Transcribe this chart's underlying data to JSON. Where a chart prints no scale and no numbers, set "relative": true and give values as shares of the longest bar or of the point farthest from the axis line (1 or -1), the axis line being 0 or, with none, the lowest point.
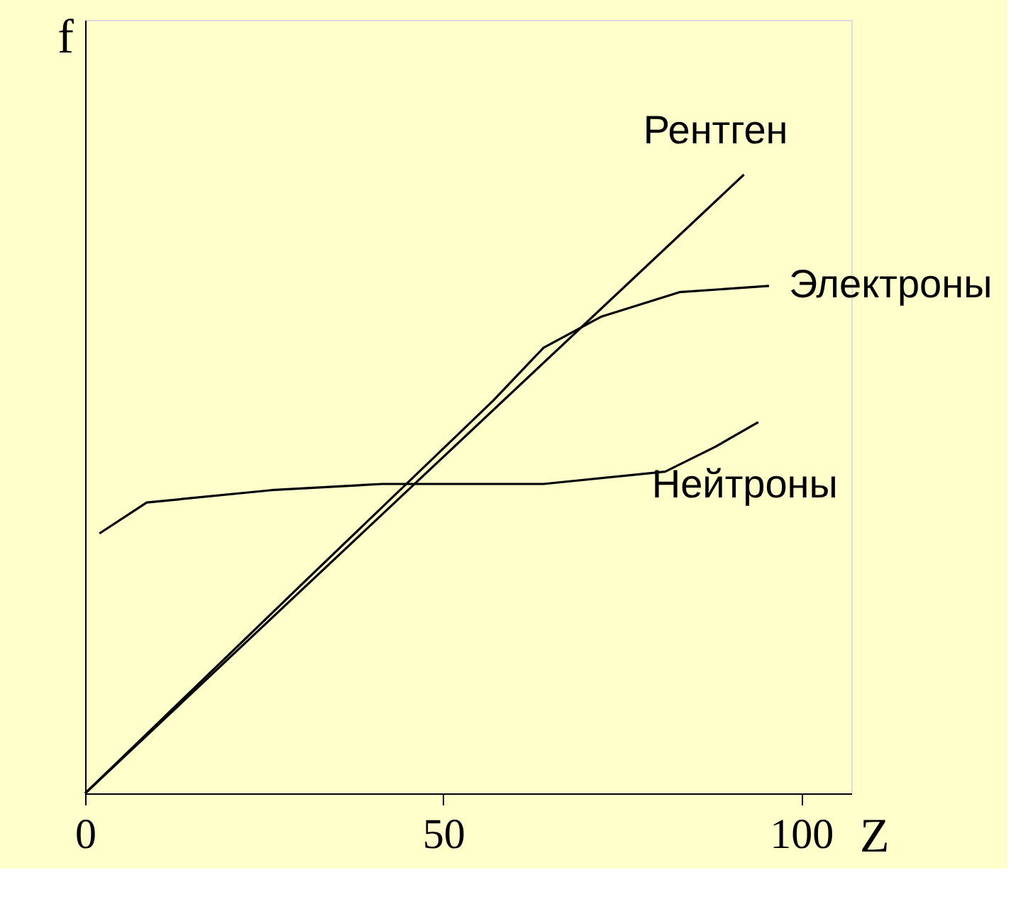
{
  "chart_data": {
    "type": "line",
    "relative": true,
    "xlabel": "Z",
    "ylabel": "f",
    "xlim": [
      0,
      107
    ],
    "xticks": [
      0,
      50,
      100
    ],
    "marker": "none",
    "line_style": "solid",
    "series": [
      {
        "name": "Рентген",
        "color": "#000000",
        "x": [
          0,
          92
        ],
        "values": [
          0,
          1.0
        ]
      },
      {
        "name": "Электроны",
        "color": "#000000",
        "x": [
          0,
          30,
          57,
          64,
          72,
          83,
          95.5
        ],
        "values": [
          0,
          0.335,
          0.635,
          0.72,
          0.77,
          0.81,
          0.82
        ]
      },
      {
        "name": "Нейтроны",
        "color": "#000000",
        "x": [
          2,
          8.6,
          26,
          41.5,
          64,
          81,
          88,
          94
        ],
        "values": [
          0.42,
          0.47,
          0.49,
          0.5,
          0.5,
          0.52,
          0.56,
          0.6
        ]
      }
    ]
  }
}
